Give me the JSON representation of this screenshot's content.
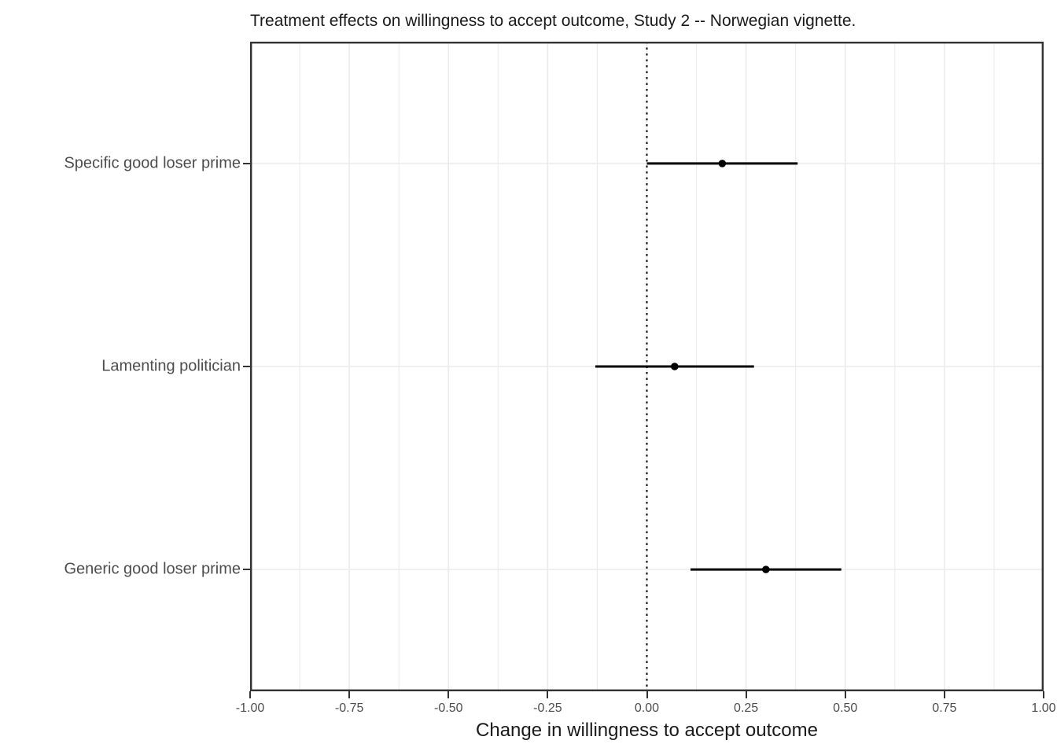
{
  "chart_data": {
    "type": "scatter",
    "subtype": "coefficient-plot-with-error-bars",
    "title": "Treatment effects on willingness to accept outcome, Study 2 -- Norwegian vignette.",
    "xlabel": "Change in willingness to accept outcome",
    "ylabel": "",
    "xlim": [
      -1.0,
      1.0
    ],
    "x_ticks": [
      -1.0,
      -0.75,
      -0.5,
      -0.25,
      0.0,
      0.25,
      0.5,
      0.75,
      1.0
    ],
    "x_tick_labels": [
      "-1.00",
      "-0.75",
      "-0.50",
      "-0.25",
      "0.00",
      "0.25",
      "0.50",
      "0.75",
      "1.00"
    ],
    "minor_grid_step": 0.125,
    "grid": "on",
    "legend": "none",
    "zero_reference_line": {
      "x": 0.0,
      "style": "dotted"
    },
    "categories": [
      "Specific good loser prime",
      "Lamenting politician",
      "Generic good loser prime"
    ],
    "points": [
      {
        "label": "Specific good loser prime",
        "estimate": 0.19,
        "ci_low": 0.0,
        "ci_high": 0.38
      },
      {
        "label": "Lamenting politician",
        "estimate": 0.07,
        "ci_low": -0.13,
        "ci_high": 0.27
      },
      {
        "label": "Generic good loser prime",
        "estimate": 0.3,
        "ci_low": 0.11,
        "ci_high": 0.49
      }
    ],
    "colors": {
      "point": "#000000",
      "ci_line": "#000000",
      "zero_line": "#000000",
      "grid": "#ebebeb",
      "panel_border": "#333333",
      "axis_text": "#4d4d4d",
      "title_text": "#1a1a1a",
      "background": "#ffffff"
    }
  }
}
